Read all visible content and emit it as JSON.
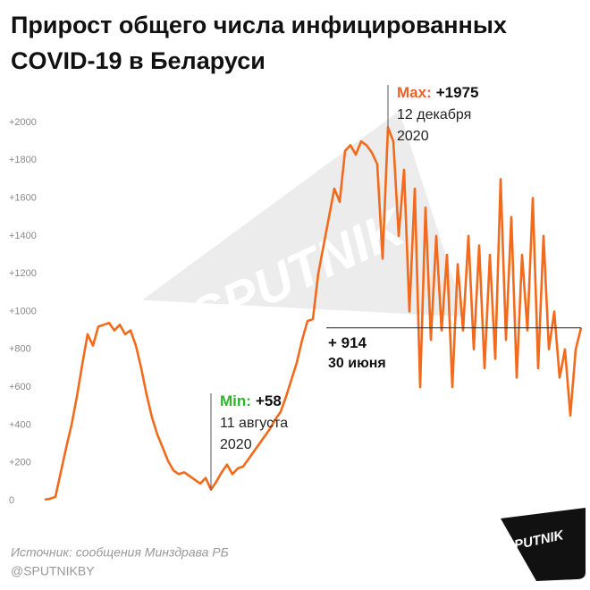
{
  "chart_data": {
    "type": "line",
    "title": [
      "Прирост общего числа инфицированных",
      "COVID-19 в Беларуси"
    ],
    "values": [
      5,
      10,
      20,
      150,
      280,
      400,
      550,
      720,
      880,
      820,
      920,
      930,
      940,
      900,
      930,
      880,
      900,
      820,
      700,
      560,
      440,
      350,
      280,
      210,
      160,
      140,
      150,
      130,
      110,
      90,
      120,
      58,
      100,
      150,
      190,
      140,
      170,
      180,
      220,
      260,
      300,
      340,
      380,
      430,
      470,
      550,
      640,
      730,
      850,
      950,
      960,
      1200,
      1350,
      1500,
      1650,
      1580,
      1850,
      1880,
      1830,
      1900,
      1880,
      1840,
      1780,
      1280,
      1975,
      1900,
      1400,
      1750,
      1000,
      1650,
      600,
      1550,
      850,
      1400,
      900,
      1300,
      600,
      1250,
      900,
      1400,
      800,
      1350,
      700,
      1300,
      750,
      1700,
      850,
      1500,
      650,
      1300,
      900,
      1600,
      700,
      1400,
      800,
      1000,
      650,
      800,
      450,
      800,
      914
    ],
    "color": "#f26a1b",
    "ylim": [
      0,
      2000
    ],
    "yticks": [
      0,
      {
        "value": 200,
        "label": "+200"
      },
      {
        "value": 400,
        "label": "+400"
      },
      {
        "value": 600,
        "label": "+600"
      },
      {
        "value": 800,
        "label": "+800"
      },
      {
        "value": 1000,
        "label": "+1000"
      },
      {
        "value": 1200,
        "label": "+1200"
      },
      {
        "value": 1400,
        "label": "+1400"
      },
      {
        "value": 1600,
        "label": "+1600"
      },
      {
        "value": 1800,
        "label": "+1800"
      },
      {
        "value": 2000,
        "label": "+2000"
      }
    ],
    "annotations": [
      {
        "kind": "Max:",
        "value": 1975,
        "label": "+1975",
        "date": [
          "12 декабря",
          "2020"
        ]
      },
      {
        "kind": "Min:",
        "value": 58,
        "label": "+58",
        "date": [
          "11 августа",
          "2020"
        ]
      },
      {
        "value": 914,
        "label": "+ 914",
        "date": [
          "30 июня"
        ]
      }
    ],
    "source": "Источник: сообщения Минздрава РБ",
    "credit": "@SPUTNIKBY",
    "watermark": "SPUTNIK",
    "logo": "SPUTNIK"
  }
}
